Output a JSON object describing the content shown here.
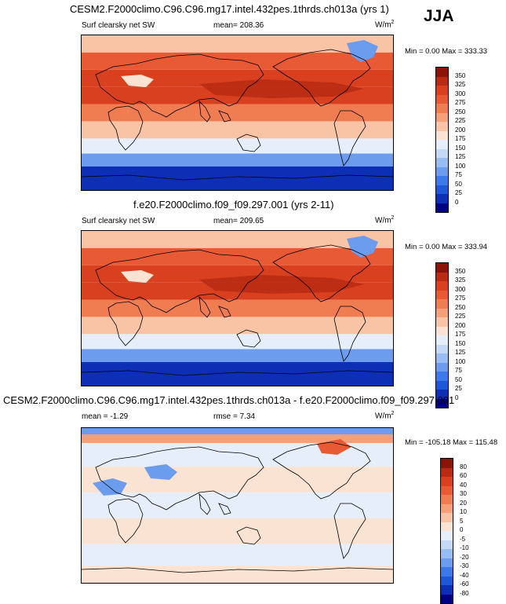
{
  "season": "JJA",
  "units_base": "W/m",
  "units_exp": "2",
  "colors": {
    "abs_scale": [
      "#000080",
      "#0d2fb5",
      "#1f57d9",
      "#3d79e8",
      "#6c9cee",
      "#97bdf2",
      "#c3d9f6",
      "#e6eef9",
      "#fbe3d3",
      "#f9c4a6",
      "#f5a079",
      "#f07c52",
      "#e85a34",
      "#d8401f",
      "#b92a12",
      "#8a1407"
    ],
    "diff_scale": [
      "#000080",
      "#0d2fb5",
      "#1f57d9",
      "#3d79e8",
      "#6c9cee",
      "#97bdf2",
      "#c3d9f6",
      "#e6eef9",
      "#fbe3d3",
      "#f9c4a6",
      "#f5a079",
      "#f07c52",
      "#e85a34",
      "#d8401f",
      "#b92a12",
      "#8a1407"
    ]
  },
  "panels": [
    {
      "title": "CESM2.F2000climo.C96.C96.mg17.intel.432pes.1thrds.ch013a (yrs 1)",
      "variable": "Surf clearsky net SW",
      "stat_label": "mean= 208.36",
      "extra_label": "",
      "minmax": "Min =   0.00 Max = 333.33",
      "kind": "abs"
    },
    {
      "title": "f.e20.F2000climo.f09_f09.297.001 (yrs 2-11)",
      "variable": "Surf clearsky net SW",
      "stat_label": "mean= 209.65",
      "extra_label": "",
      "minmax": "Min =   0.00 Max = 333.94",
      "kind": "abs"
    },
    {
      "title": "CESM2.F2000climo.C96.C96.mg17.intel.432pes.1thrds.ch013a - f.e20.F2000climo.f09_f09.297.001",
      "variable": "",
      "stat_label": "mean =  -1.29",
      "extra_label": "rmse =   7.34",
      "minmax": "Min = -105.18 Max = 115.48",
      "kind": "diff"
    }
  ],
  "chart_data": [
    {
      "type": "heatmap",
      "title": "CESM2.F2000climo.C96.C96.mg17.intel.432pes.1thrds.ch013a (yrs 1)",
      "variable": "Surf clearsky net SW",
      "units": "W/m^2",
      "season": "JJA",
      "mean": 208.36,
      "min": 0.0,
      "max": 333.33,
      "colorbar_levels": [
        0,
        25,
        50,
        75,
        100,
        125,
        150,
        175,
        200,
        225,
        250,
        275,
        300,
        325,
        350
      ],
      "colorbar_labels": [
        "0",
        "25",
        "50",
        "75",
        "100",
        "125",
        "150",
        "175",
        "200",
        "225",
        "250",
        "275",
        "300",
        "325",
        "350"
      ],
      "latitude_band_values": [
        {
          "lat": 80,
          "value": 215
        },
        {
          "lat": 60,
          "value": 285
        },
        {
          "lat": 40,
          "value": 318
        },
        {
          "lat": 20,
          "value": 300
        },
        {
          "lat": 0,
          "value": 265
        },
        {
          "lat": -20,
          "value": 215
        },
        {
          "lat": -40,
          "value": 150
        },
        {
          "lat": -55,
          "value": 85
        },
        {
          "lat": -70,
          "value": 15
        }
      ]
    },
    {
      "type": "heatmap",
      "title": "f.e20.F2000climo.f09_f09.297.001 (yrs 2-11)",
      "variable": "Surf clearsky net SW",
      "units": "W/m^2",
      "season": "JJA",
      "mean": 209.65,
      "min": 0.0,
      "max": 333.94,
      "colorbar_levels": [
        0,
        25,
        50,
        75,
        100,
        125,
        150,
        175,
        200,
        225,
        250,
        275,
        300,
        325,
        350
      ],
      "colorbar_labels": [
        "0",
        "25",
        "50",
        "75",
        "100",
        "125",
        "150",
        "175",
        "200",
        "225",
        "250",
        "275",
        "300",
        "325",
        "350"
      ],
      "latitude_band_values": [
        {
          "lat": 80,
          "value": 215
        },
        {
          "lat": 60,
          "value": 285
        },
        {
          "lat": 40,
          "value": 318
        },
        {
          "lat": 20,
          "value": 300
        },
        {
          "lat": 0,
          "value": 265
        },
        {
          "lat": -20,
          "value": 215
        },
        {
          "lat": -40,
          "value": 150
        },
        {
          "lat": -55,
          "value": 85
        },
        {
          "lat": -70,
          "value": 15
        }
      ]
    },
    {
      "type": "heatmap",
      "title": "CESM2.F2000climo.C96.C96.mg17.intel.432pes.1thrds.ch013a - f.e20.F2000climo.f09_f09.297.001",
      "units": "W/m^2",
      "season": "JJA",
      "mean": -1.29,
      "rmse": 7.34,
      "min": -105.18,
      "max": 115.48,
      "colorbar_levels": [
        -80,
        -60,
        -40,
        -30,
        -20,
        -10,
        -5,
        0,
        5,
        10,
        20,
        30,
        40,
        60,
        80
      ],
      "colorbar_labels": [
        "-80",
        "-60",
        "-40",
        "-30",
        "-20",
        "-10",
        "-5",
        "0",
        "5",
        "10",
        "20",
        "30",
        "40",
        "60",
        "80"
      ],
      "latitude_band_values": [
        {
          "lat": 85,
          "value": 15
        },
        {
          "lat": 60,
          "value": -3
        },
        {
          "lat": 30,
          "value": 2
        },
        {
          "lat": 0,
          "value": -3
        },
        {
          "lat": -30,
          "value": 3
        },
        {
          "lat": -60,
          "value": -3
        },
        {
          "lat": -80,
          "value": 3
        }
      ]
    }
  ]
}
